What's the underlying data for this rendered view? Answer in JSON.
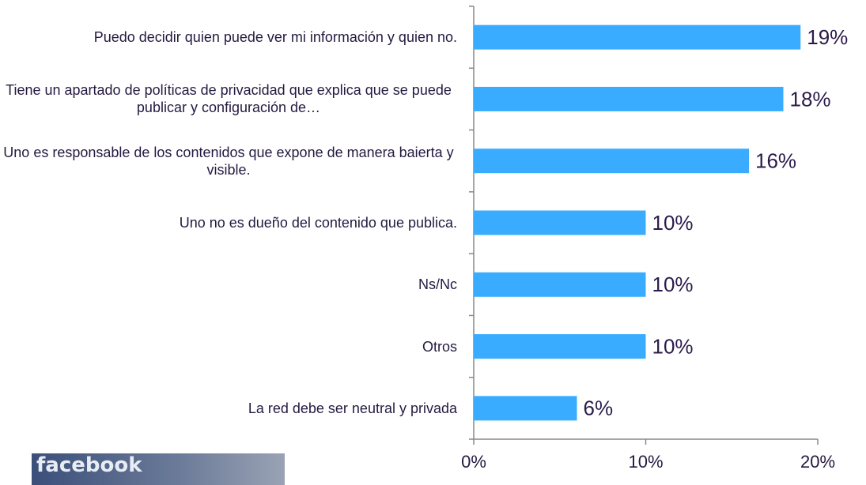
{
  "chart_data": {
    "type": "bar",
    "orientation": "horizontal",
    "categories": [
      "Puedo decidir quien puede ver mi información y quien no.",
      "Tiene un apartado de políticas de privacidad que explica que se puede publicar y configuración de…",
      "Uno es responsable de los contenidos que expone de manera baierta y visible.",
      "Uno no es dueño del contenido que publica.",
      "Ns/Nc",
      "Otros",
      "La red debe ser neutral y privada"
    ],
    "values": [
      19,
      18,
      16,
      10,
      10,
      10,
      6
    ],
    "value_labels": [
      "19%",
      "18%",
      "16%",
      "10%",
      "10%",
      "10%",
      "6%"
    ],
    "color": "#3aacff",
    "xlim": [
      0,
      20
    ],
    "xticks": [
      {
        "value": 0,
        "label": "0%"
      },
      {
        "value": 10,
        "label": "10%"
      },
      {
        "value": 20,
        "label": "20%"
      }
    ],
    "grid": false
  },
  "logo": "facebook"
}
